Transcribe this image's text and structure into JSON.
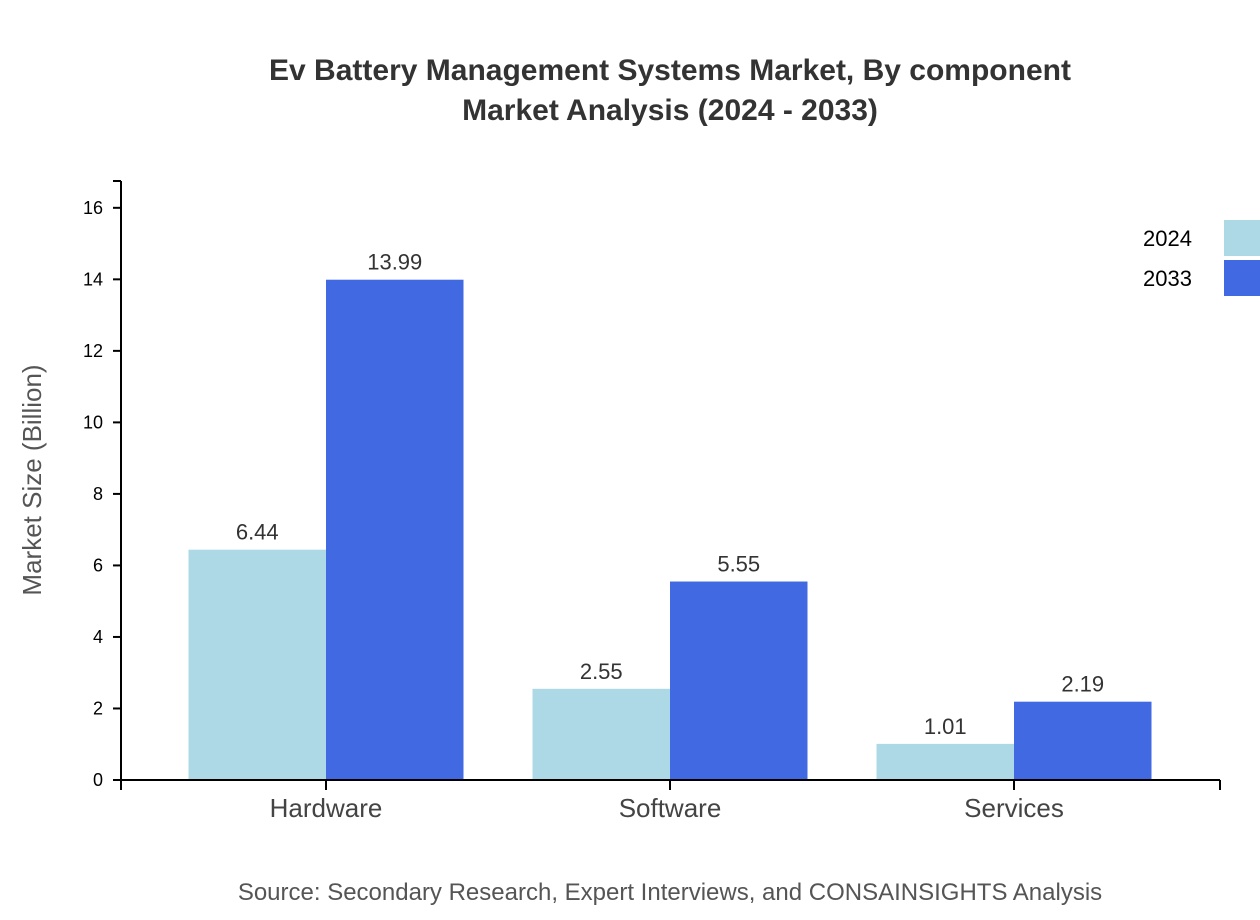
{
  "chart_data": {
    "type": "bar",
    "title_lines": [
      "Ev Battery Management Systems Market, By component",
      "Market Analysis (2024 - 2033)"
    ],
    "ylabel": "Market Size (Billion)",
    "xlabel": "",
    "categories": [
      "Hardware",
      "Software",
      "Services"
    ],
    "series": [
      {
        "name": "2024",
        "values": [
          6.44,
          2.55,
          1.01
        ],
        "color": "#ADD8E6"
      },
      {
        "name": "2033",
        "values": [
          13.99,
          5.55,
          2.19
        ],
        "color": "#4169E1"
      }
    ],
    "ylim": [
      0,
      16.75
    ],
    "yticks": [
      0,
      2,
      4,
      6,
      8,
      10,
      12,
      14,
      16
    ],
    "grid": false,
    "legend_placement": "top-right",
    "source": "Source: Secondary Research, Expert Interviews, and CONSAINSIGHTS Analysis"
  }
}
